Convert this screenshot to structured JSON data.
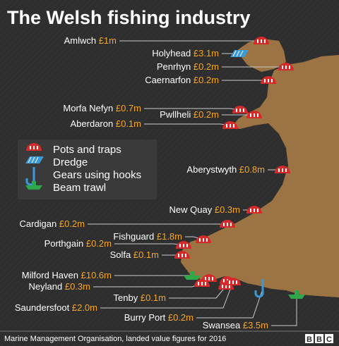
{
  "title": "The Welsh fishing industry",
  "ports": [
    {
      "name": "Amlwch",
      "value": "£1m"
    },
    {
      "name": "Holyhead",
      "value": "£3.1m"
    },
    {
      "name": "Penrhyn",
      "value": "£0.2m"
    },
    {
      "name": "Caernarfon",
      "value": "£0.2m"
    },
    {
      "name": "Morfa Nefyn",
      "value": "£0.7m"
    },
    {
      "name": "Pwllheli",
      "value": "£0.2m"
    },
    {
      "name": "Aberdaron",
      "value": "£0.1m"
    },
    {
      "name": "Aberystwyth",
      "value": "£0.8m"
    },
    {
      "name": "New Quay",
      "value": "£0.3m"
    },
    {
      "name": "Cardigan",
      "value": "£0.2m"
    },
    {
      "name": "Fishguard",
      "value": "£1.8m"
    },
    {
      "name": "Porthgain",
      "value": "£0.2m"
    },
    {
      "name": "Solfa",
      "value": "£0.1m"
    },
    {
      "name": "Milford Haven",
      "value": "£10.6m"
    },
    {
      "name": "Neyland",
      "value": "£0.3m"
    },
    {
      "name": "Tenby",
      "value": "£0.1m"
    },
    {
      "name": "Saundersfoot",
      "value": "£2.0m"
    },
    {
      "name": "Burry Port",
      "value": "£0.2m"
    },
    {
      "name": "Swansea",
      "value": "£3.5m"
    }
  ],
  "legend": [
    "Pots and traps",
    "Dredge",
    "Gears using hooks",
    "Beam trawl"
  ],
  "source": "Marine Management Organisation, landed value figures for 2016",
  "logo": [
    "B",
    "B",
    "C"
  ]
}
